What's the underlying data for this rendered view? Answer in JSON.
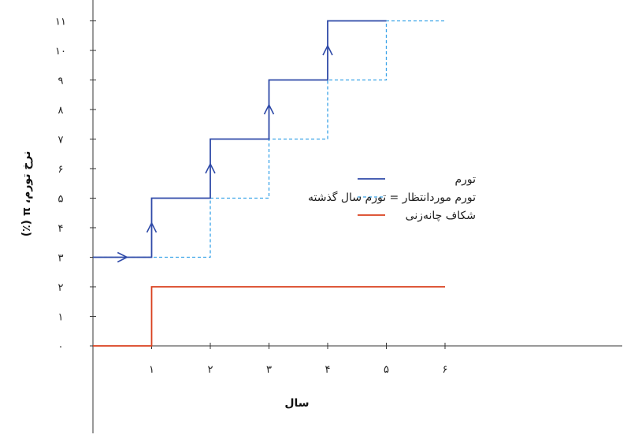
{
  "chart_data": {
    "type": "line",
    "xlabel": "سال",
    "ylabel": "نرخ تورم، π (٪)",
    "x_ticks": [
      {
        "value": 1,
        "label": "۱"
      },
      {
        "value": 2,
        "label": "۲"
      },
      {
        "value": 3,
        "label": "۳"
      },
      {
        "value": 4,
        "label": "۴"
      },
      {
        "value": 5,
        "label": "۵"
      },
      {
        "value": 6,
        "label": "۶"
      }
    ],
    "y_ticks": [
      {
        "value": 0,
        "label": "۰"
      },
      {
        "value": 1,
        "label": "۱"
      },
      {
        "value": 2,
        "label": "۲"
      },
      {
        "value": 3,
        "label": "۳"
      },
      {
        "value": 4,
        "label": "۴"
      },
      {
        "value": 5,
        "label": "۵"
      },
      {
        "value": 6,
        "label": "۶"
      },
      {
        "value": 7,
        "label": "۷"
      },
      {
        "value": 8,
        "label": "۸"
      },
      {
        "value": 9,
        "label": "۹"
      },
      {
        "value": 10,
        "label": "۱۰"
      },
      {
        "value": 11,
        "label": "۱۱"
      }
    ],
    "xlim": [
      0,
      9
    ],
    "ylim": [
      0,
      11
    ],
    "grid": false,
    "legend": "right",
    "series": [
      {
        "name": "تورم",
        "color": "#2f4aa8",
        "style": "solid",
        "points": [
          [
            0,
            3
          ],
          [
            1,
            3
          ],
          [
            1,
            5
          ],
          [
            2,
            5
          ],
          [
            2,
            7
          ],
          [
            3,
            7
          ],
          [
            3,
            9
          ],
          [
            4,
            9
          ],
          [
            4,
            11
          ],
          [
            5,
            11
          ]
        ],
        "arrows": [
          [
            0.5,
            3,
            "right"
          ],
          [
            1,
            4,
            "up"
          ],
          [
            2,
            6,
            "up"
          ],
          [
            3,
            8,
            "up"
          ],
          [
            4,
            10,
            "up"
          ]
        ]
      },
      {
        "name": "تورم موردانتظار = تورم سال گذشته",
        "color": "#3aa3e8",
        "style": "dashed",
        "points": [
          [
            0,
            3
          ],
          [
            2,
            3
          ],
          [
            2,
            5
          ],
          [
            3,
            5
          ],
          [
            3,
            7
          ],
          [
            4,
            7
          ],
          [
            4,
            9
          ],
          [
            5,
            9
          ],
          [
            5,
            11
          ],
          [
            6,
            11
          ]
        ],
        "arrows": []
      },
      {
        "name": "شکاف چانه‌زنی",
        "color": "#d9401e",
        "style": "solid",
        "points": [
          [
            0,
            0
          ],
          [
            1,
            0
          ],
          [
            1,
            2
          ],
          [
            6,
            2
          ]
        ],
        "arrows": []
      }
    ]
  }
}
